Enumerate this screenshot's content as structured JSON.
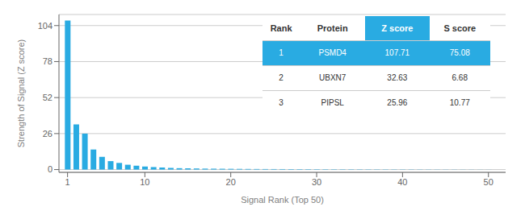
{
  "chart_data": {
    "type": "bar",
    "xlabel": "Signal Rank (Top 50)",
    "ylabel": "Strength of Signal (Z score)",
    "x": [
      1,
      2,
      3,
      4,
      5,
      6,
      7,
      8,
      9,
      10,
      11,
      12,
      13,
      14,
      15,
      16,
      17,
      18,
      19,
      20,
      21,
      22,
      23,
      24,
      25,
      26,
      27,
      28,
      29,
      30,
      31,
      32,
      33,
      34,
      35,
      36,
      37,
      38,
      39,
      40,
      41,
      42,
      43,
      44,
      45,
      46,
      47,
      48,
      49,
      50
    ],
    "values": [
      107.71,
      32.63,
      25.96,
      14.5,
      9.2,
      6.1,
      4.8,
      3.5,
      2.8,
      2.2,
      1.8,
      1.5,
      1.2,
      1.0,
      0.9,
      0.8,
      0.7,
      0.65,
      0.6,
      0.55,
      0.5,
      0.45,
      0.42,
      0.39,
      0.37,
      0.35,
      0.33,
      0.31,
      0.29,
      0.27,
      0.25,
      0.23,
      0.22,
      0.21,
      0.2,
      0.19,
      0.18,
      0.17,
      0.16,
      0.15,
      0.14,
      0.13,
      0.12,
      0.11,
      0.1,
      0.09,
      0.08,
      0.07,
      0.06,
      0.05
    ],
    "color": "#29ABE2",
    "xlim": [
      0,
      52
    ],
    "xticks": [
      1,
      10,
      20,
      30,
      40,
      50
    ],
    "ylim": [
      -2,
      112
    ],
    "yticks": [
      0,
      26,
      52,
      78,
      104
    ],
    "grid": true,
    "table": [
      [
        "Rank",
        "Protein",
        "Z score",
        "S score"
      ],
      [
        "1",
        "PSMD4",
        "107.71",
        "75.08"
      ],
      [
        "2",
        "UBXN7",
        "32.63",
        "6.68"
      ],
      [
        "3",
        "PIPSL",
        "25.96",
        "10.77"
      ]
    ]
  }
}
